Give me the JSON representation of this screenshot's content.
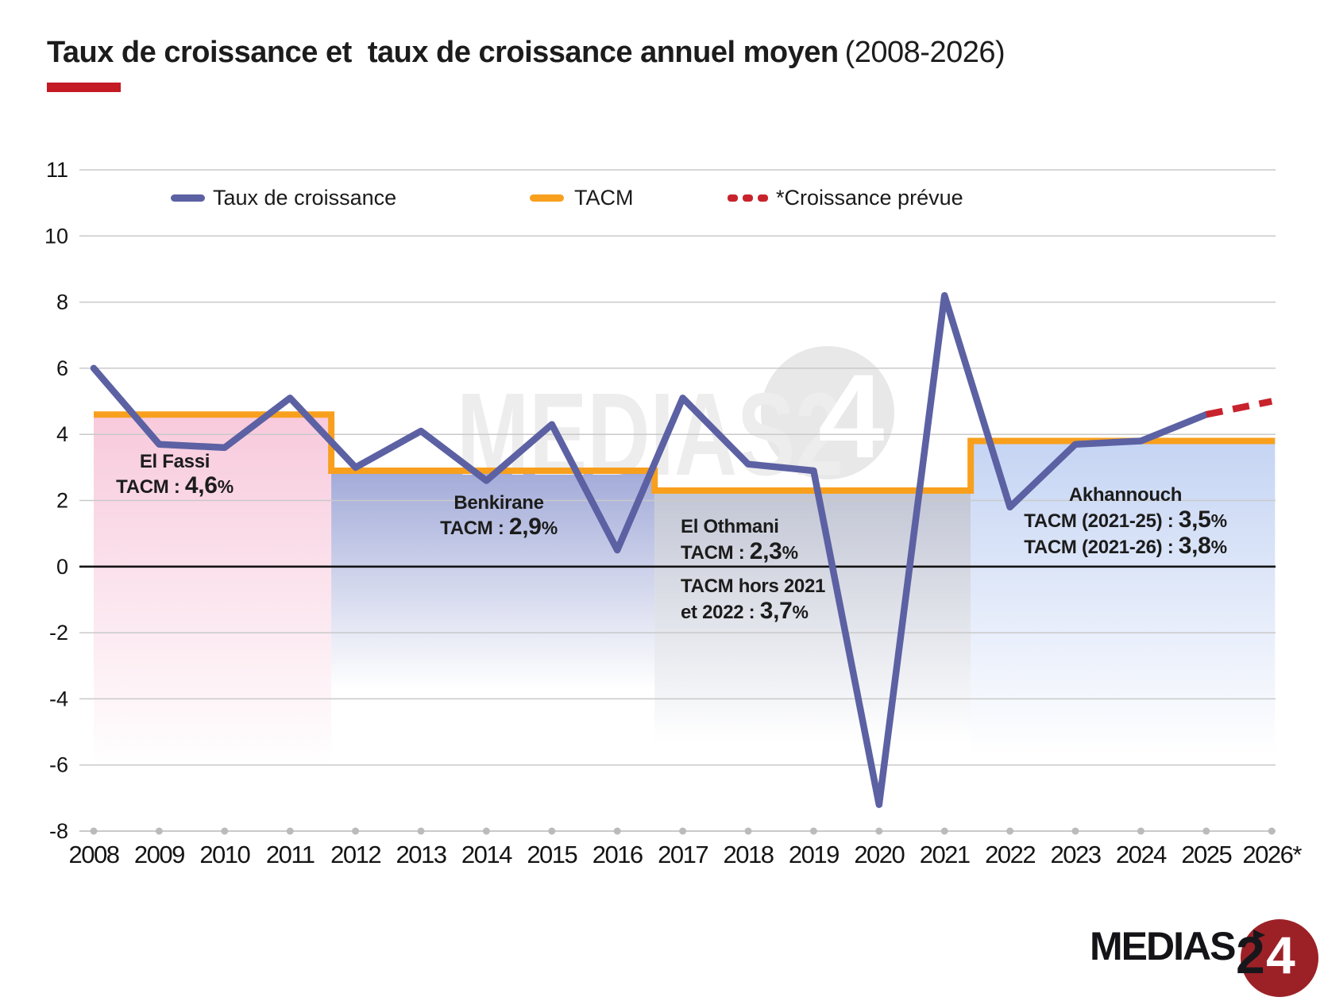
{
  "title": {
    "main": "Taux de croissance et  taux de croissance annuel moyen",
    "period": "(2008-2026)"
  },
  "legend": [
    {
      "label": "Taux de croissance",
      "color": "#5C61A3",
      "style": "solid"
    },
    {
      "label": "TACM",
      "color": "#F8A01E",
      "style": "solid"
    },
    {
      "label": "*Croissance prévue",
      "color": "#C8232C",
      "style": "dashed"
    }
  ],
  "chart_data": {
    "type": "line",
    "title": "Taux de croissance et taux de croissance annuel moyen (2008-2026)",
    "x": [
      2008,
      2009,
      2010,
      2011,
      2012,
      2013,
      2014,
      2015,
      2016,
      2017,
      2018,
      2019,
      2020,
      2021,
      2022,
      2023,
      2024,
      2025,
      2026
    ],
    "x_tick_labels": [
      "2008",
      "2009",
      "2010",
      "2011",
      "2012",
      "2013",
      "2014",
      "2015",
      "2016",
      "2017",
      "2018",
      "2019",
      "2020",
      "2021",
      "2022",
      "2023",
      "2024",
      "2025",
      "2026*"
    ],
    "y_tick_labels": [
      "11",
      "10",
      "8",
      "6",
      "4",
      "2",
      "0",
      "-2",
      "-4",
      "-6",
      "-8"
    ],
    "grid": "horizontal",
    "legend_position": "top",
    "line_color": "#5C61A3",
    "tacm_color": "#F8A01E",
    "forecast_color": "#C8232C",
    "growth": {
      "name": "Taux de croissance",
      "years": [
        2008,
        2009,
        2010,
        2011,
        2012,
        2013,
        2014,
        2015,
        2016,
        2017,
        2018,
        2019,
        2020,
        2021,
        2022,
        2023,
        2024,
        2025
      ],
      "values": [
        6.0,
        3.7,
        3.6,
        5.1,
        3.0,
        4.1,
        2.6,
        4.3,
        0.5,
        5.1,
        3.1,
        2.9,
        -7.2,
        8.2,
        1.8,
        3.7,
        3.8,
        4.6
      ]
    },
    "forecast": {
      "name": "Croissance prévue",
      "years": [
        2025,
        2026
      ],
      "values": [
        4.6,
        5.0
      ]
    },
    "governments": [
      {
        "name": "El Fassi",
        "from": 2008,
        "to": 2011.63,
        "tacm": 4.6,
        "fill": "#F6BCD3"
      },
      {
        "name": "Benkirane",
        "from": 2011.63,
        "to": 2016.57,
        "tacm": 2.9,
        "fill": "#9AA3D5"
      },
      {
        "name": "El Othmani",
        "from": 2016.57,
        "to": 2021.4,
        "tacm": 2.3,
        "fill": "#B7BCCD"
      },
      {
        "name": "Akhannouch",
        "from": 2021.4,
        "to": 2026.05,
        "tacm": 3.8,
        "fill": "#C2D2F3"
      }
    ]
  },
  "annotations": {
    "el_fassi": {
      "name": "El Fassi",
      "tacm_prefix": "TACM : ",
      "tacm_value": "4,6",
      "tacm_suffix": "%"
    },
    "benkirane": {
      "name": "Benkirane",
      "tacm_prefix": "TACM : ",
      "tacm_value": "2,9",
      "tacm_suffix": "%"
    },
    "el_othmani": {
      "name": "El Othmani",
      "tacm_prefix": "TACM : ",
      "tacm_value": "2,3",
      "tacm_suffix": "%",
      "extra_line1": "TACM hors 2021",
      "extra_prefix": "et 2022 : ",
      "extra_value": "3,7",
      "extra_suffix": "%"
    },
    "akhannouch": {
      "name": "Akhannouch",
      "line1_prefix": "TACM (2021-25) : ",
      "line1_value": "3,5",
      "line1_suffix": "%",
      "line2_prefix": "TACM (2021-26) : ",
      "line2_value": "3,8",
      "line2_suffix": "%"
    }
  },
  "watermark": {
    "text_main": "MEDIAS2",
    "text_circle": "4"
  },
  "logo": {
    "medias": "MEDIAS",
    "two": "2",
    "four": "4"
  }
}
